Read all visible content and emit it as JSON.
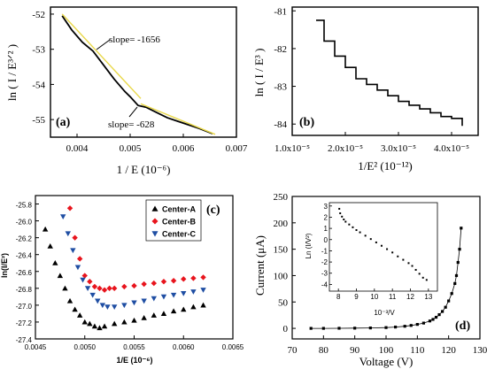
{
  "panels": {
    "a": {
      "label": "(a)"
    },
    "b": {
      "label": "(b)"
    },
    "c": {
      "label": "(c)"
    },
    "d": {
      "label": "(d)"
    }
  },
  "chart_data": [
    {
      "type": "line",
      "panel": "(a)",
      "xlabel": "1 / E (10⁻⁶)",
      "ylabel": "ln ( I / E³ᐟ² )",
      "xlim": [
        0.0035,
        0.007
      ],
      "ylim": [
        -55.5,
        -51.8
      ],
      "xticks": [
        "0.004",
        "0.005",
        "0.006",
        "0.007"
      ],
      "yticks": [
        "-52",
        "-53",
        "-54",
        "-55"
      ],
      "annotations": [
        "slope= -1656",
        "slope= -628"
      ],
      "series": [
        {
          "x": [
            0.00372,
            0.0039,
            0.0041,
            0.0043,
            0.0045,
            0.0047,
            0.0049,
            0.005,
            0.00515,
            0.0053,
            0.0055,
            0.0057,
            0.0059,
            0.0061,
            0.0063,
            0.00655
          ],
          "y": [
            -52.05,
            -52.45,
            -52.8,
            -53.05,
            -53.45,
            -53.85,
            -54.2,
            -54.35,
            -54.6,
            -54.65,
            -54.8,
            -54.95,
            -55.05,
            -55.15,
            -55.25,
            -55.4
          ]
        },
        {
          "x": [
            0.00372,
            0.0052
          ],
          "y": [
            -52.0,
            -54.4
          ]
        },
        {
          "x": [
            0.0052,
            0.0066
          ],
          "y": [
            -54.55,
            -55.42
          ]
        }
      ]
    },
    {
      "type": "line",
      "panel": "(b)",
      "xlabel": "1/E² (10⁻¹²)",
      "ylabel": "ln ( I / E³ )",
      "xlim": [
        1e-05,
        4.5e-05
      ],
      "ylim": [
        -84.3,
        -80.9
      ],
      "xticks": [
        "1.0x10⁻⁵",
        "2.0x10⁻⁵",
        "3.0x10⁻⁵",
        "4.0x10⁻⁵"
      ],
      "yticks": [
        "-81",
        "-82",
        "-83",
        "-84"
      ],
      "series": [
        {
          "x": [
            1.45e-05,
            1.6e-05,
            1.8e-05,
            2e-05,
            2.2e-05,
            2.4e-05,
            2.6e-05,
            2.8e-05,
            3e-05,
            3.2e-05,
            3.4e-05,
            3.6e-05,
            3.8e-05,
            4e-05,
            4.2e-05
          ],
          "y": [
            -81.25,
            -81.8,
            -82.2,
            -82.5,
            -82.8,
            -82.95,
            -83.1,
            -83.25,
            -83.4,
            -83.5,
            -83.6,
            -83.7,
            -83.8,
            -83.85,
            -84.05
          ]
        }
      ]
    },
    {
      "type": "scatter",
      "panel": "(c)",
      "xlabel": "1/E (10⁻⁶)",
      "ylabel": "ln(I/E²)",
      "xlim": [
        0.0045,
        0.0065
      ],
      "ylim": [
        -27.4,
        -25.7
      ],
      "xticks": [
        "0.0045",
        "0.0050",
        "0.0055",
        "0.0060",
        "0.0065"
      ],
      "yticks": [
        "-25.8",
        "-26.0",
        "-26.2",
        "-26.4",
        "-26.6",
        "-26.8",
        "-27.0",
        "-27.2",
        "-27.4"
      ],
      "legend": "top-right",
      "series": [
        {
          "name": "Center-A",
          "color": "#000000",
          "marker": "triangle-up",
          "x": [
            0.0046,
            0.00465,
            0.0047,
            0.00475,
            0.0048,
            0.00485,
            0.0049,
            0.00495,
            0.005,
            0.00505,
            0.0051,
            0.00515,
            0.0052,
            0.0053,
            0.0054,
            0.0055,
            0.0056,
            0.0057,
            0.0058,
            0.0059,
            0.006,
            0.0061,
            0.0062
          ],
          "y": [
            -26.1,
            -26.3,
            -26.5,
            -26.65,
            -26.8,
            -26.95,
            -27.05,
            -27.12,
            -27.2,
            -27.22,
            -27.25,
            -27.27,
            -27.25,
            -27.22,
            -27.2,
            -27.18,
            -27.15,
            -27.12,
            -27.1,
            -27.07,
            -27.05,
            -27.02,
            -27.0
          ]
        },
        {
          "name": "Center-B",
          "color": "#e8141d",
          "marker": "diamond",
          "x": [
            0.00485,
            0.0049,
            0.00495,
            0.005,
            0.00505,
            0.0051,
            0.00515,
            0.0052,
            0.00525,
            0.0053,
            0.0054,
            0.0055,
            0.0056,
            0.0057,
            0.0058,
            0.0059,
            0.006,
            0.0061,
            0.0062
          ],
          "y": [
            -25.85,
            -26.2,
            -26.45,
            -26.65,
            -26.72,
            -26.78,
            -26.8,
            -26.82,
            -26.8,
            -26.8,
            -26.78,
            -26.77,
            -26.75,
            -26.74,
            -26.72,
            -26.71,
            -26.69,
            -26.68,
            -26.67
          ]
        },
        {
          "name": "Center-C",
          "color": "#1f4ea3",
          "marker": "triangle-down",
          "x": [
            0.00478,
            0.00483,
            0.00488,
            0.00493,
            0.00498,
            0.00503,
            0.00508,
            0.00513,
            0.00518,
            0.00523,
            0.0053,
            0.0054,
            0.0055,
            0.0056,
            0.0057,
            0.0058,
            0.0059,
            0.006,
            0.0061,
            0.0062
          ],
          "y": [
            -25.95,
            -26.15,
            -26.35,
            -26.55,
            -26.7,
            -26.8,
            -26.88,
            -26.95,
            -27.0,
            -27.02,
            -27.02,
            -27.0,
            -26.97,
            -26.95,
            -26.92,
            -26.9,
            -26.88,
            -26.86,
            -26.84,
            -26.82
          ]
        }
      ]
    },
    {
      "type": "scatter",
      "panel": "(d)",
      "xlabel": "Voltage (V)",
      "ylabel": "Current (μA)",
      "xlim": [
        70,
        130
      ],
      "ylim": [
        -20,
        250
      ],
      "xticks": [
        "70",
        "80",
        "90",
        "100",
        "110",
        "120",
        "130"
      ],
      "yticks": [
        "0",
        "50",
        "100",
        "150",
        "200",
        "250"
      ],
      "series": [
        {
          "x": [
            76,
            80,
            85,
            90,
            95,
            100,
            103,
            106,
            108,
            110,
            112,
            114,
            115,
            116,
            117,
            118,
            119,
            120,
            121,
            122,
            122.5,
            123,
            123.5,
            124
          ],
          "y": [
            0,
            0,
            0.2,
            0.4,
            0.8,
            1.5,
            2.5,
            4,
            5.5,
            7.5,
            10,
            14,
            17,
            21,
            26,
            32,
            40,
            52,
            66,
            85,
            100,
            125,
            150,
            190
          ]
        }
      ],
      "inset": {
        "type": "scatter",
        "xlabel": "10⁻³/V",
        "ylabel": "Ln (I/V²)",
        "xlim": [
          7.5,
          13.5
        ],
        "ylim": [
          -4.6,
          3.3
        ],
        "xticks": [
          "8",
          "9",
          "10",
          "11",
          "12",
          "13"
        ],
        "yticks": [
          "3",
          "2",
          "1",
          "0",
          "-1",
          "-2",
          "-3",
          "-4"
        ],
        "x": [
          8.05,
          8.1,
          8.2,
          8.3,
          8.4,
          8.6,
          8.8,
          9.0,
          9.2,
          9.5,
          9.8,
          10.1,
          10.4,
          10.7,
          11.0,
          11.3,
          11.6,
          11.9,
          12.1,
          12.3,
          12.5,
          12.7,
          12.9
        ],
        "y": [
          2.75,
          2.35,
          2.05,
          1.8,
          1.6,
          1.35,
          1.1,
          0.85,
          0.65,
          0.35,
          0.05,
          -0.25,
          -0.55,
          -0.85,
          -1.15,
          -1.5,
          -1.8,
          -2.1,
          -2.35,
          -2.7,
          -3.05,
          -3.4,
          -3.6
        ]
      }
    }
  ]
}
